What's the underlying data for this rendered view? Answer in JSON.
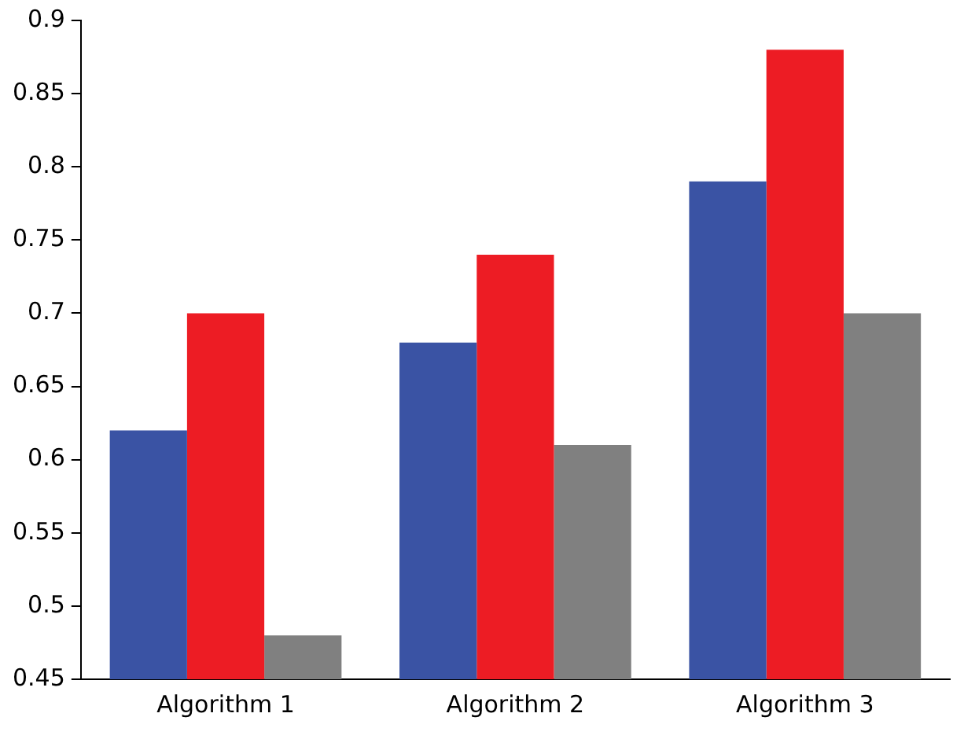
{
  "chart_data": {
    "type": "bar",
    "categories": [
      "Algorithm 1",
      "Algorithm 2",
      "Algorithm 3"
    ],
    "series": [
      {
        "color": "#3a53a4",
        "values": [
          0.62,
          0.68,
          0.79
        ]
      },
      {
        "color": "#ed1c24",
        "values": [
          0.7,
          0.74,
          0.88
        ]
      },
      {
        "color": "#808080",
        "values": [
          0.48,
          0.61,
          0.7
        ]
      }
    ],
    "ylim": [
      0.45,
      0.9
    ],
    "yticks": [
      0.45,
      0.5,
      0.55,
      0.6,
      0.65,
      0.7,
      0.75,
      0.8,
      0.85,
      0.9
    ],
    "grid": false,
    "legend": false
  }
}
